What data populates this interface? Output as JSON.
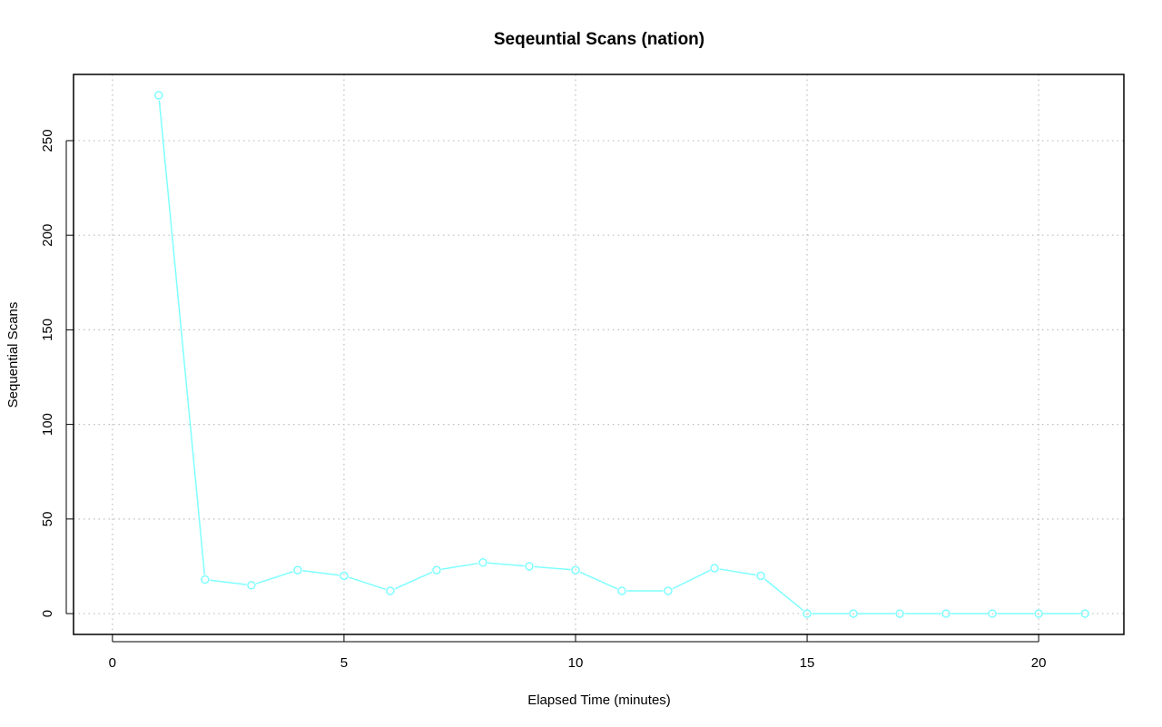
{
  "chart_data": {
    "type": "line",
    "title": "Seqeuntial Scans (nation)",
    "xlabel": "Elapsed Time (minutes)",
    "ylabel": "Sequential Scans",
    "xlim": [
      -0.84,
      21.84
    ],
    "ylim": [
      -11,
      285
    ],
    "xticks": [
      0,
      5,
      10,
      15,
      20
    ],
    "yticks": [
      0,
      50,
      100,
      150,
      200,
      250
    ],
    "grid": true,
    "legend": "none",
    "series": [
      {
        "color": "#7FFFFF",
        "marker": "open-circle",
        "x": [
          1,
          2,
          3,
          4,
          5,
          6,
          7,
          8,
          9,
          10,
          11,
          12,
          13,
          14,
          15,
          16,
          17,
          18,
          19,
          20,
          21
        ],
        "y": [
          274,
          18,
          15,
          23,
          20,
          12,
          23,
          27,
          25,
          23,
          12,
          12,
          24,
          20,
          0,
          0,
          0,
          0,
          0,
          0,
          0
        ]
      }
    ],
    "colors": {
      "grid": "#BEBEBE",
      "frame": "#000000",
      "line": "#7FFFFF"
    }
  }
}
